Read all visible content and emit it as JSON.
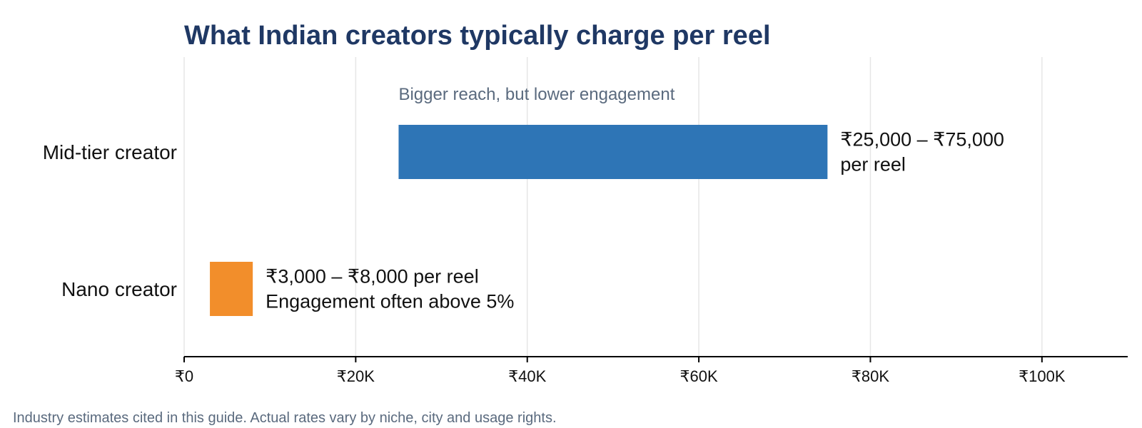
{
  "chart_data": {
    "type": "bar",
    "orientation": "horizontal",
    "style": "floating-range",
    "title": "What Indian creators typically charge per reel",
    "xlabel": "",
    "ylabel": "",
    "xlim": [
      0,
      110000
    ],
    "x_ticks": [
      0,
      20000,
      40000,
      60000,
      80000,
      100000
    ],
    "x_tick_labels": [
      "₹0",
      "₹20K",
      "₹40K",
      "₹60K",
      "₹80K",
      "₹100K"
    ],
    "grid": "vertical",
    "legend": "none",
    "categories": [
      "Mid-tier creator",
      "Nano creator"
    ],
    "ranges": [
      {
        "category": "Mid-tier creator",
        "start": 25000,
        "end": 75000,
        "color": "#2e75b6",
        "label_lines": [
          "₹25,000 – ₹75,000",
          "per reel"
        ],
        "annotation": "Bigger reach, but lower engagement"
      },
      {
        "category": "Nano creator",
        "start": 3000,
        "end": 8000,
        "color": "#f28e2b",
        "label_lines": [
          "₹3,000 – ₹8,000 per reel",
          "Engagement often above 5%"
        ],
        "annotation": ""
      }
    ],
    "note": "Industry estimates cited in this guide. Actual rates vary by niche, city and usage rights."
  }
}
